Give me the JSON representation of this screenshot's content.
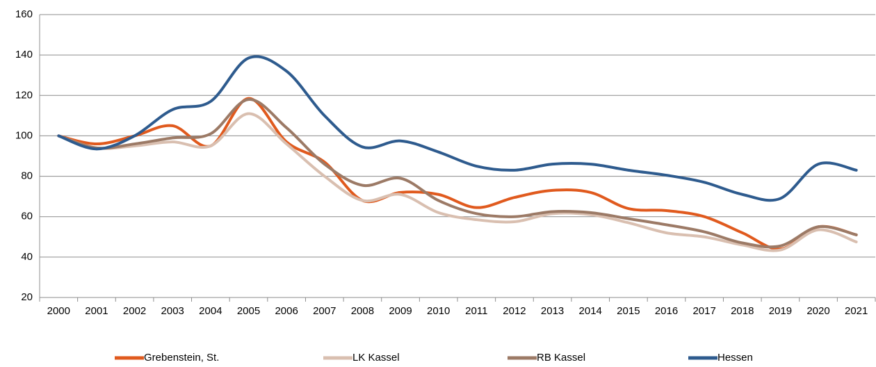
{
  "chart_data": {
    "type": "line",
    "categories": [
      "2000",
      "2001",
      "2002",
      "2003",
      "2004",
      "2005",
      "2006",
      "2007",
      "2008",
      "2009",
      "2010",
      "2011",
      "2012",
      "2013",
      "2014",
      "2015",
      "2016",
      "2017",
      "2018",
      "2019",
      "2020",
      "2021"
    ],
    "series": [
      {
        "name": "Grebenstein, St.",
        "color": "#e05a1e",
        "values": [
          100,
          96,
          100,
          105,
          95,
          118.5,
          97,
          87,
          68,
          72,
          71,
          64.5,
          69.5,
          73,
          72,
          64,
          63,
          60,
          52,
          44,
          55,
          51
        ]
      },
      {
        "name": "LK Kassel",
        "color": "#d9bfb0",
        "values": [
          100,
          94,
          95,
          97,
          95,
          111,
          96,
          80,
          68,
          71,
          62,
          58.5,
          57.5,
          61.5,
          61,
          57,
          52,
          50,
          46,
          43.5,
          53.5,
          47.5
        ]
      },
      {
        "name": "RB Kassel",
        "color": "#9c7a66",
        "values": [
          100,
          94,
          96,
          99,
          101,
          118,
          104,
          86,
          75.5,
          79,
          68,
          61.5,
          60,
          62.5,
          62,
          59,
          56,
          52.5,
          47,
          45.5,
          55,
          51
        ]
      },
      {
        "name": "Hessen",
        "color": "#2e5b8e",
        "values": [
          100,
          93.5,
          100,
          113,
          117,
          138.5,
          132,
          110,
          94.5,
          97.5,
          92,
          85,
          83,
          86,
          86,
          83,
          80.5,
          77,
          71,
          69,
          86,
          83
        ]
      }
    ],
    "ylim": [
      20,
      160
    ],
    "yticks": [
      20,
      40,
      60,
      80,
      100,
      120,
      140,
      160
    ],
    "grid": true,
    "legend": "bottom"
  }
}
